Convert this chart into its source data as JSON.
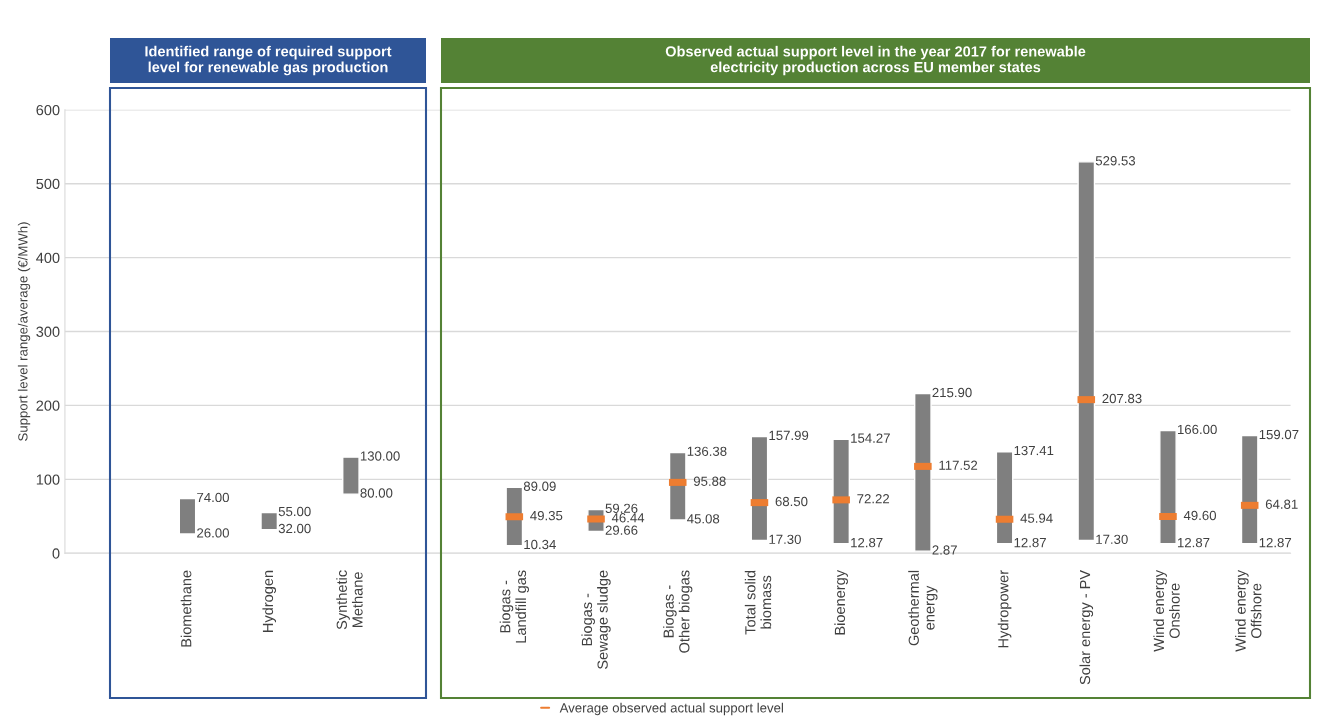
{
  "chart_data": {
    "type": "bar",
    "ylabel": "Support level range/average (€/MWh)",
    "categories": [
      null,
      "Biomethane",
      "Hydrogen",
      "Synthetic\nMethane",
      null,
      "Biogas -\nLandfill gas",
      "Biogas -\nSewage sludge",
      "Biogas -\nOther biogas",
      "Total solid\nbiomass",
      "Bioenergy",
      "Geothermal\nenergy",
      "Hydropower",
      "Solar energy - PV",
      "Wind energy\nOnshore",
      "Wind energy\nOffshore"
    ],
    "series": [
      {
        "color": "#7f7f7f",
        "base": [
          null,
          26.0,
          32.0,
          80.0,
          null,
          10.34,
          29.66,
          45.08,
          17.3,
          12.87,
          2.87,
          12.87,
          17.3,
          12.87,
          12.87
        ],
        "values": [
          null,
          48,
          23,
          50,
          null,
          78.75,
          29.6,
          91.3,
          140.69,
          141.4,
          213.03,
          124.54,
          512.23,
          153.13,
          146.2
        ]
      },
      {
        "type": "scatter",
        "name": "Average observed actual support level",
        "color": "#ed7d31",
        "values": [
          null,
          null,
          null,
          null,
          null,
          49.35,
          46.44,
          95.88,
          68.5,
          72.22,
          117.52,
          45.94,
          207.83,
          49.6,
          64.81
        ],
        "value_labels": [
          null,
          null,
          null,
          null,
          null,
          "49.35",
          "46.44",
          "95.88",
          "68.50",
          "72.22",
          "117.52",
          "45.94",
          "207.83",
          "49.60",
          "64.81"
        ]
      }
    ],
    "ylim": [
      0,
      600
    ],
    "yticks": [
      0,
      100,
      200,
      300,
      400,
      500,
      600
    ],
    "grid": "y",
    "legend": "bottom",
    "annotations": [
      "Identified range of required support\nlevel for renewable gas production",
      "Observed actual support level in the year 2017 for renewable\nelectricity production across EU member states",
      {
        "text": "74.00",
        "x": "Biomethane",
        "y": 74.0
      },
      {
        "text": "26.00",
        "x": "Biomethane",
        "y": 26.0
      },
      {
        "text": "55.00",
        "x": "Hydrogen",
        "y": 55.0
      },
      {
        "text": "32.00",
        "x": "Hydrogen",
        "y": 32.0
      },
      {
        "text": "130.00",
        "x": "Synthetic\nMethane",
        "y": 130.0
      },
      {
        "text": "80.00",
        "x": "Synthetic\nMethane",
        "y": 80.0
      },
      {
        "text": "89.09",
        "x": "Biogas -\nLandfill gas",
        "y": 89.09
      },
      {
        "text": "10.34",
        "x": "Biogas -\nLandfill gas",
        "y": 10.34
      },
      {
        "text": "59.26",
        "x": "Biogas -\nSewage sludge",
        "y": 59.26
      },
      {
        "text": "29.66",
        "x": "Biogas -\nSewage sludge",
        "y": 29.66
      },
      {
        "text": "136.38",
        "x": "Biogas -\nOther biogas",
        "y": 136.38
      },
      {
        "text": "45.08",
        "x": "Biogas -\nOther biogas",
        "y": 45.08
      },
      {
        "text": "157.99",
        "x": "Total solid\nbiomass",
        "y": 157.99
      },
      {
        "text": "17.30",
        "x": "Total solid\nbiomass",
        "y": 17.3
      },
      {
        "text": "154.27",
        "x": "Bioenergy",
        "y": 154.27
      },
      {
        "text": "12.87",
        "x": "Bioenergy",
        "y": 12.87
      },
      {
        "text": "215.90",
        "x": "Geothermal\nenergy",
        "y": 215.9
      },
      {
        "text": "2.87",
        "x": "Geothermal\nenergy",
        "y": 2.87
      },
      {
        "text": "137.41",
        "x": "Hydropower",
        "y": 137.41
      },
      {
        "text": "12.87",
        "x": "Hydropower",
        "y": 12.87
      },
      {
        "text": "529.53",
        "x": "Solar energy - PV",
        "y": 529.53
      },
      {
        "text": "17.30",
        "x": "Solar energy - PV",
        "y": 17.3
      },
      {
        "text": "166.00",
        "x": "Wind energy\nOnshore",
        "y": 166.0
      },
      {
        "text": "12.87",
        "x": "Wind energy\nOnshore",
        "y": 12.87
      },
      {
        "text": "159.07",
        "x": "Wind energy\nOffshore",
        "y": 159.07
      },
      {
        "text": "12.87",
        "x": "Wind energy\nOffshore",
        "y": 12.87
      }
    ]
  }
}
